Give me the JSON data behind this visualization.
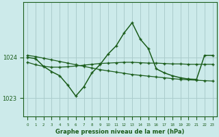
{
  "title": "Graphe pression niveau de la mer (hPa)",
  "bg_color": "#cceaea",
  "grid_color": "#aacccc",
  "line_color": "#1a5c1a",
  "text_color": "#1a5c1a",
  "xlim": [
    -0.5,
    23.5
  ],
  "ylim": [
    1022.55,
    1025.35
  ],
  "yticks": [
    1023,
    1024
  ],
  "xticks": [
    0,
    1,
    2,
    3,
    4,
    5,
    6,
    7,
    8,
    9,
    10,
    11,
    12,
    13,
    14,
    15,
    16,
    17,
    18,
    19,
    20,
    21,
    22,
    23
  ],
  "line1_x": [
    0,
    1,
    2,
    3,
    4,
    5,
    6,
    7,
    8,
    9,
    10,
    11,
    12,
    13,
    14,
    15,
    16,
    17,
    18,
    19,
    20,
    21,
    22,
    23
  ],
  "line1_y": [
    1024.05,
    1024.02,
    1023.98,
    1023.94,
    1023.9,
    1023.86,
    1023.82,
    1023.78,
    1023.74,
    1023.7,
    1023.67,
    1023.64,
    1023.61,
    1023.58,
    1023.56,
    1023.54,
    1023.52,
    1023.5,
    1023.48,
    1023.46,
    1023.45,
    1023.44,
    1023.43,
    1023.42
  ],
  "line2_x": [
    0,
    1,
    2,
    3,
    4,
    5,
    6,
    7,
    8,
    9,
    10,
    11,
    12,
    13,
    14,
    15,
    16,
    17,
    18,
    19,
    20,
    21,
    22,
    23
  ],
  "line2_y": [
    1023.88,
    1023.82,
    1023.78,
    1023.76,
    1023.76,
    1023.77,
    1023.79,
    1023.81,
    1023.83,
    1023.85,
    1023.86,
    1023.87,
    1023.88,
    1023.88,
    1023.87,
    1023.86,
    1023.86,
    1023.85,
    1023.84,
    1023.84,
    1023.83,
    1023.83,
    1023.83,
    1023.83
  ],
  "line3_x": [
    0,
    1,
    2,
    3,
    4,
    5,
    6,
    7,
    8,
    9,
    10,
    11,
    12,
    13,
    14,
    15,
    16,
    17,
    18,
    19,
    20,
    21,
    22,
    23
  ],
  "line3_y": [
    1024.0,
    1023.97,
    1023.78,
    1023.65,
    1023.55,
    1023.32,
    1023.05,
    1023.28,
    1023.62,
    1023.82,
    1024.08,
    1024.28,
    1024.6,
    1024.85,
    1024.45,
    1024.22,
    1023.72,
    1023.62,
    1023.55,
    1023.5,
    1023.47,
    1023.46,
    1024.05,
    1024.05
  ]
}
